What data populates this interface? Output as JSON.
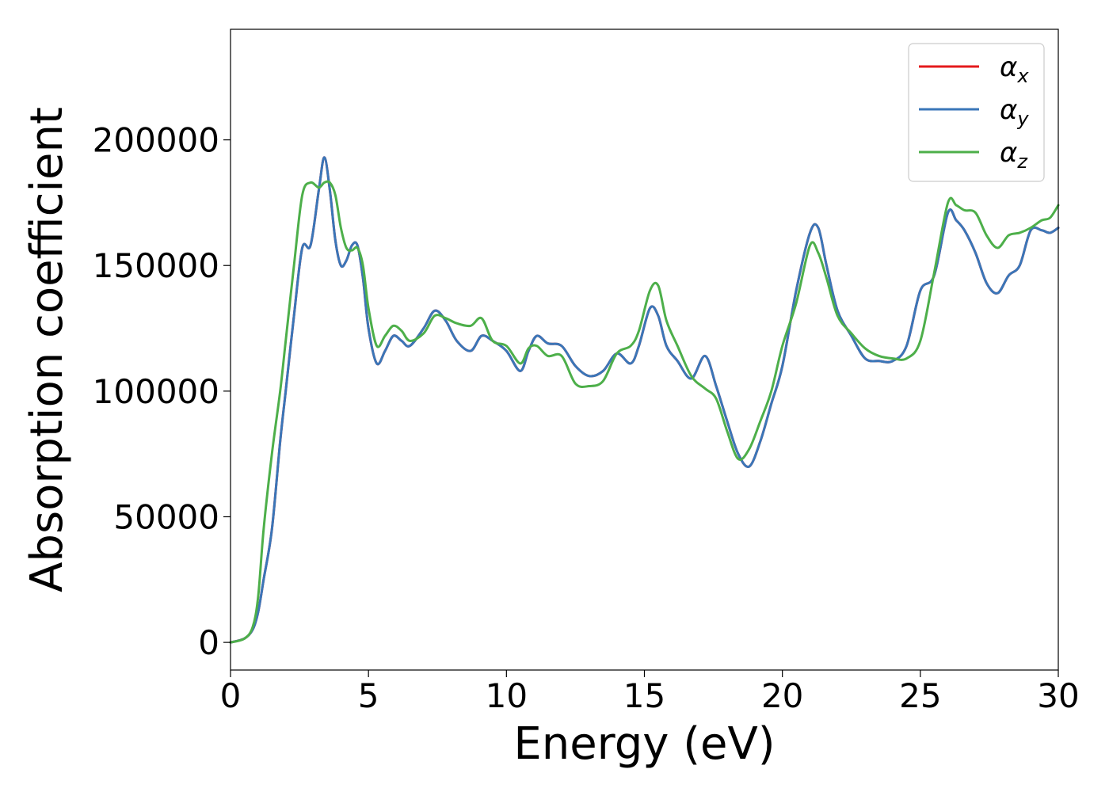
{
  "chart_data": {
    "type": "line",
    "xlabel": "Energy (eV)",
    "ylabel": "Absorption coefficient",
    "xlim": [
      0,
      30
    ],
    "ylim": [
      -11000,
      244000
    ],
    "x_ticks": [
      0,
      5,
      10,
      15,
      20,
      25,
      30
    ],
    "y_ticks": [
      0,
      50000,
      100000,
      150000,
      200000
    ],
    "grid": false,
    "legend_position": "top-right",
    "series": [
      {
        "name": "α_x",
        "label_main": "α",
        "label_sub": "x",
        "color": "#e41a1c",
        "x": [
          0,
          0.5,
          0.8,
          1.0,
          1.2,
          1.5,
          1.8,
          2.0,
          2.3,
          2.6,
          2.9,
          3.2,
          3.4,
          3.6,
          3.8,
          4.0,
          4.2,
          4.4,
          4.6,
          4.8,
          5.0,
          5.3,
          5.6,
          5.9,
          6.2,
          6.5,
          7.0,
          7.4,
          7.8,
          8.2,
          8.7,
          9.1,
          9.5,
          10.0,
          10.5,
          10.8,
          11.1,
          11.5,
          12.0,
          12.5,
          13.0,
          13.5,
          14.0,
          14.5,
          14.8,
          15.2,
          15.5,
          15.8,
          16.2,
          16.7,
          17.2,
          17.6,
          18.0,
          18.4,
          18.8,
          19.2,
          19.6,
          20.0,
          20.5,
          21.0,
          21.3,
          21.6,
          22.0,
          22.5,
          23.0,
          23.5,
          24.0,
          24.5,
          25.0,
          25.5,
          26.0,
          26.3,
          26.6,
          27.0,
          27.4,
          27.8,
          28.2,
          28.6,
          29.0,
          29.4,
          29.7,
          30.0
        ],
        "y": [
          0,
          1500,
          5000,
          12000,
          25000,
          45000,
          80000,
          100000,
          130000,
          157000,
          158000,
          180000,
          193000,
          180000,
          160000,
          150000,
          152000,
          158000,
          158000,
          145000,
          125000,
          111000,
          116000,
          122000,
          120000,
          118000,
          125000,
          132000,
          128000,
          120000,
          116000,
          122000,
          120000,
          116000,
          108000,
          116000,
          122000,
          119000,
          118000,
          110000,
          106000,
          108000,
          115000,
          111000,
          118000,
          133000,
          130000,
          118000,
          112000,
          105000,
          114000,
          102000,
          88000,
          75000,
          70000,
          80000,
          95000,
          110000,
          140000,
          163000,
          165000,
          150000,
          132000,
          122000,
          113000,
          112000,
          112000,
          118000,
          140000,
          146000,
          171000,
          168000,
          164000,
          155000,
          143000,
          139000,
          146000,
          150000,
          164000,
          164000,
          163000,
          165000
        ]
      },
      {
        "name": "α_y",
        "label_main": "α",
        "label_sub": "y",
        "color": "#3a76b8",
        "x": [
          0,
          0.5,
          0.8,
          1.0,
          1.2,
          1.5,
          1.8,
          2.0,
          2.3,
          2.6,
          2.9,
          3.2,
          3.4,
          3.6,
          3.8,
          4.0,
          4.2,
          4.4,
          4.6,
          4.8,
          5.0,
          5.3,
          5.6,
          5.9,
          6.2,
          6.5,
          7.0,
          7.4,
          7.8,
          8.2,
          8.7,
          9.1,
          9.5,
          10.0,
          10.5,
          10.8,
          11.1,
          11.5,
          12.0,
          12.5,
          13.0,
          13.5,
          14.0,
          14.5,
          14.8,
          15.2,
          15.5,
          15.8,
          16.2,
          16.7,
          17.2,
          17.6,
          18.0,
          18.4,
          18.8,
          19.2,
          19.6,
          20.0,
          20.5,
          21.0,
          21.3,
          21.6,
          22.0,
          22.5,
          23.0,
          23.5,
          24.0,
          24.5,
          25.0,
          25.5,
          26.0,
          26.3,
          26.6,
          27.0,
          27.4,
          27.8,
          28.2,
          28.6,
          29.0,
          29.4,
          29.7,
          30.0
        ],
        "y": [
          0,
          1500,
          5000,
          12000,
          25000,
          45000,
          80000,
          100000,
          130000,
          157000,
          158000,
          180000,
          193000,
          180000,
          160000,
          150000,
          152000,
          158000,
          158000,
          145000,
          125000,
          111000,
          116000,
          122000,
          120000,
          118000,
          125000,
          132000,
          128000,
          120000,
          116000,
          122000,
          120000,
          116000,
          108000,
          116000,
          122000,
          119000,
          118000,
          110000,
          106000,
          108000,
          115000,
          111000,
          118000,
          133000,
          130000,
          118000,
          112000,
          105000,
          114000,
          102000,
          88000,
          75000,
          70000,
          80000,
          95000,
          110000,
          140000,
          163000,
          165000,
          150000,
          132000,
          122000,
          113000,
          112000,
          112000,
          118000,
          140000,
          146000,
          171000,
          168000,
          164000,
          155000,
          143000,
          139000,
          146000,
          150000,
          164000,
          164000,
          163000,
          165000
        ]
      },
      {
        "name": "α_z",
        "label_main": "α",
        "label_sub": "z",
        "color": "#4daf4a",
        "x": [
          0,
          0.5,
          0.8,
          1.0,
          1.2,
          1.5,
          1.8,
          2.0,
          2.3,
          2.6,
          2.9,
          3.2,
          3.4,
          3.6,
          3.8,
          4.0,
          4.2,
          4.4,
          4.6,
          4.8,
          5.0,
          5.3,
          5.6,
          5.9,
          6.2,
          6.5,
          7.0,
          7.4,
          7.8,
          8.2,
          8.7,
          9.1,
          9.5,
          10.0,
          10.5,
          10.8,
          11.1,
          11.5,
          12.0,
          12.5,
          13.0,
          13.5,
          14.0,
          14.5,
          14.8,
          15.2,
          15.5,
          15.8,
          16.2,
          16.7,
          17.2,
          17.6,
          18.0,
          18.4,
          18.8,
          19.2,
          19.6,
          20.0,
          20.5,
          21.0,
          21.3,
          21.6,
          22.0,
          22.5,
          23.0,
          23.5,
          24.0,
          24.5,
          25.0,
          25.5,
          26.0,
          26.3,
          26.6,
          27.0,
          27.4,
          27.8,
          28.2,
          28.6,
          29.0,
          29.4,
          29.7,
          30.0
        ],
        "y": [
          0,
          1500,
          6000,
          18000,
          45000,
          75000,
          100000,
          120000,
          150000,
          178000,
          183000,
          181000,
          183000,
          183000,
          178000,
          165000,
          157000,
          156000,
          157000,
          150000,
          133000,
          118000,
          122000,
          126000,
          124000,
          120000,
          123000,
          130000,
          129000,
          127000,
          126000,
          129000,
          120000,
          118000,
          111000,
          117000,
          118000,
          114000,
          114000,
          103000,
          102000,
          104000,
          115000,
          118000,
          124000,
          140000,
          142000,
          128000,
          118000,
          106000,
          101000,
          97000,
          84000,
          73000,
          77000,
          88000,
          100000,
          118000,
          135000,
          158000,
          155000,
          145000,
          130000,
          123000,
          117000,
          114000,
          113000,
          113000,
          120000,
          147000,
          175000,
          174000,
          172000,
          171000,
          162000,
          157000,
          162000,
          163000,
          165000,
          168000,
          169000,
          174000
        ]
      }
    ]
  }
}
